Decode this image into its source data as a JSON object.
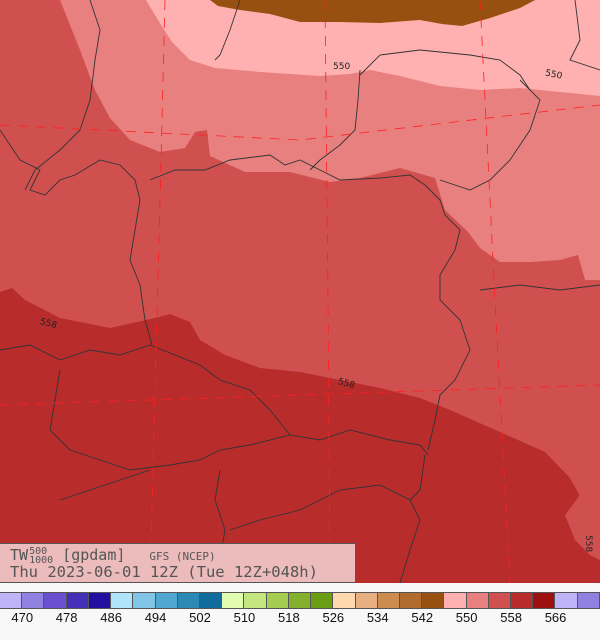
{
  "title": {
    "variable": "TW",
    "level_top": "500",
    "level_bottom": "1000",
    "unit": "[gpdam]",
    "model": "GFS (NCEP)",
    "valid": "Thu 2023-06-01 12Z (Tue 12Z+048h)"
  },
  "contour_labels": [
    "550",
    "550",
    "558",
    "558",
    "558"
  ],
  "legend": {
    "colors": [
      "#c0b4f8",
      "#9080e0",
      "#6a50d0",
      "#4430b8",
      "#2410a0",
      "#b0e4fa",
      "#80c4e6",
      "#50a8d0",
      "#2c88b4",
      "#106c9c",
      "#e2fcb0",
      "#c4e680",
      "#a4cc50",
      "#84b030",
      "#6a9c14",
      "#ffd8b0",
      "#e8b080",
      "#cc8c50",
      "#b06c2c",
      "#985010",
      "#ffb0b0",
      "#e88080",
      "#d05050",
      "#b82c2c",
      "#9c1010",
      "#c0b4f8",
      "#9080e0"
    ],
    "ticks": [
      "470",
      "478",
      "486",
      "494",
      "502",
      "510",
      "518",
      "526",
      "534",
      "542",
      "550",
      "558",
      "566"
    ]
  },
  "map_colors": {
    "band_546_550": "#985010",
    "band_550_554": "#ffb0b0",
    "band_554_558": "#e88080",
    "band_558_562": "#d05050",
    "band_562_566": "#b82c2c",
    "borders": "#333333",
    "grid": "#ff2020"
  }
}
